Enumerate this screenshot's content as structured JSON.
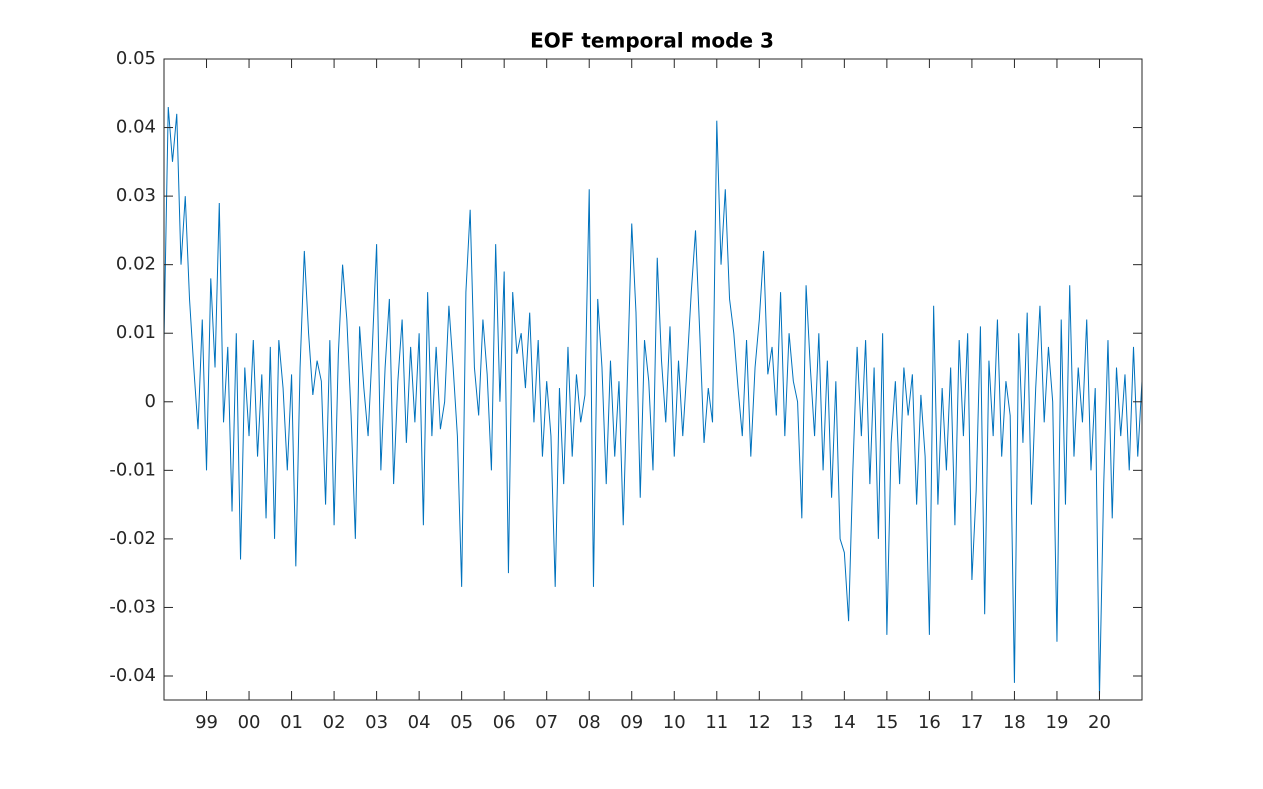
{
  "chart_data": {
    "type": "line",
    "title": "EOF temporal mode 3",
    "x": [
      1998,
      1998.1,
      1998.2,
      1998.3,
      1998.4,
      1998.5,
      1998.6,
      1998.7,
      1998.8,
      1998.9,
      1999,
      1999.1,
      1999.2,
      1999.3,
      1999.4,
      1999.5,
      1999.6,
      1999.7,
      1999.8,
      1999.9,
      2000,
      2000.1,
      2000.2,
      2000.3,
      2000.4,
      2000.5,
      2000.6,
      2000.7,
      2000.8,
      2000.9,
      2001,
      2001.1,
      2001.2,
      2001.3,
      2001.4,
      2001.5,
      2001.6,
      2001.7,
      2001.8,
      2001.9,
      2002,
      2002.1,
      2002.2,
      2002.3,
      2002.4,
      2002.5,
      2002.6,
      2002.7,
      2002.8,
      2002.9,
      2003,
      2003.1,
      2003.2,
      2003.3,
      2003.4,
      2003.5,
      2003.6,
      2003.7,
      2003.8,
      2003.9,
      2004,
      2004.1,
      2004.2,
      2004.3,
      2004.4,
      2004.5,
      2004.6,
      2004.7,
      2004.8,
      2004.9,
      2005,
      2005.1,
      2005.2,
      2005.3,
      2005.4,
      2005.5,
      2005.6,
      2005.7,
      2005.8,
      2005.9,
      2006,
      2006.1,
      2006.2,
      2006.3,
      2006.4,
      2006.5,
      2006.6,
      2006.7,
      2006.8,
      2006.9,
      2007,
      2007.1,
      2007.2,
      2007.3,
      2007.4,
      2007.5,
      2007.6,
      2007.7,
      2007.8,
      2007.9,
      2008,
      2008.1,
      2008.2,
      2008.3,
      2008.4,
      2008.5,
      2008.6,
      2008.7,
      2008.8,
      2008.9,
      2009,
      2009.1,
      2009.2,
      2009.3,
      2009.4,
      2009.5,
      2009.6,
      2009.7,
      2009.8,
      2009.9,
      2010,
      2010.1,
      2010.2,
      2010.3,
      2010.4,
      2010.5,
      2010.6,
      2010.7,
      2010.8,
      2010.9,
      2011,
      2011.1,
      2011.2,
      2011.3,
      2011.4,
      2011.5,
      2011.6,
      2011.7,
      2011.8,
      2011.9,
      2012,
      2012.1,
      2012.2,
      2012.3,
      2012.4,
      2012.5,
      2012.6,
      2012.7,
      2012.8,
      2012.9,
      2013,
      2013.1,
      2013.2,
      2013.3,
      2013.4,
      2013.5,
      2013.6,
      2013.7,
      2013.8,
      2013.9,
      2014,
      2014.1,
      2014.2,
      2014.3,
      2014.4,
      2014.5,
      2014.6,
      2014.7,
      2014.8,
      2014.9,
      2015,
      2015.1,
      2015.2,
      2015.3,
      2015.4,
      2015.5,
      2015.6,
      2015.7,
      2015.8,
      2015.9,
      2016,
      2016.1,
      2016.2,
      2016.3,
      2016.4,
      2016.5,
      2016.6,
      2016.7,
      2016.8,
      2016.9,
      2017,
      2017.1,
      2017.2,
      2017.3,
      2017.4,
      2017.5,
      2017.6,
      2017.7,
      2017.8,
      2017.9,
      2018,
      2018.1,
      2018.2,
      2018.3,
      2018.4,
      2018.5,
      2018.6,
      2018.7,
      2018.8,
      2018.9,
      2019,
      2019.1,
      2019.2,
      2019.3,
      2019.4,
      2019.5,
      2019.6,
      2019.7,
      2019.8,
      2019.9,
      2020,
      2020.1,
      2020.2,
      2020.3,
      2020.4,
      2020.5,
      2020.6,
      2020.7,
      2020.8,
      2020.9,
      2021
    ],
    "series": [
      {
        "color": "#0072bd",
        "values": [
          0.009,
          0.043,
          0.035,
          0.042,
          0.02,
          0.03,
          0.015,
          0.005,
          -0.004,
          0.012,
          -0.01,
          0.018,
          0.005,
          0.029,
          -0.003,
          0.008,
          -0.016,
          0.01,
          -0.023,
          0.005,
          -0.005,
          0.009,
          -0.008,
          0.004,
          -0.017,
          0.008,
          -0.02,
          0.009,
          0.002,
          -0.01,
          0.004,
          -0.024,
          0.005,
          0.022,
          0.01,
          0.001,
          0.006,
          0.003,
          -0.015,
          0.009,
          -0.018,
          0.007,
          0.02,
          0.012,
          -0.002,
          -0.02,
          0.011,
          0.002,
          -0.005,
          0.008,
          0.023,
          -0.01,
          0.005,
          0.015,
          -0.012,
          0.003,
          0.012,
          -0.006,
          0.008,
          -0.003,
          0.01,
          -0.018,
          0.016,
          -0.005,
          0.008,
          -0.004,
          0.0,
          0.014,
          0.005,
          -0.005,
          -0.027,
          0.016,
          0.028,
          0.005,
          -0.002,
          0.012,
          0.004,
          -0.01,
          0.023,
          0.0,
          0.019,
          -0.025,
          0.016,
          0.007,
          0.01,
          0.002,
          0.013,
          -0.003,
          0.009,
          -0.008,
          0.003,
          -0.005,
          -0.027,
          0.002,
          -0.012,
          0.008,
          -0.008,
          0.004,
          -0.003,
          0.001,
          0.031,
          -0.027,
          0.015,
          0.005,
          -0.012,
          0.006,
          -0.008,
          0.003,
          -0.018,
          0.004,
          0.026,
          0.013,
          -0.014,
          0.009,
          0.003,
          -0.01,
          0.021,
          0.006,
          -0.003,
          0.011,
          -0.008,
          0.006,
          -0.005,
          0.005,
          0.016,
          0.025,
          0.01,
          -0.006,
          0.002,
          -0.003,
          0.041,
          0.02,
          0.031,
          0.015,
          0.01,
          0.002,
          -0.005,
          0.009,
          -0.008,
          0.005,
          0.012,
          0.022,
          0.004,
          0.008,
          -0.002,
          0.016,
          -0.005,
          0.01,
          0.003,
          0.0,
          -0.017,
          0.017,
          0.005,
          -0.005,
          0.01,
          -0.01,
          0.006,
          -0.014,
          0.003,
          -0.02,
          -0.022,
          -0.032,
          -0.01,
          0.008,
          -0.005,
          0.009,
          -0.012,
          0.005,
          -0.02,
          0.01,
          -0.034,
          -0.006,
          0.003,
          -0.012,
          0.005,
          -0.002,
          0.004,
          -0.015,
          0.001,
          -0.008,
          -0.034,
          0.014,
          -0.015,
          0.002,
          -0.01,
          0.005,
          -0.018,
          0.009,
          -0.005,
          0.01,
          -0.026,
          -0.013,
          0.011,
          -0.031,
          0.006,
          -0.005,
          0.012,
          -0.008,
          0.003,
          -0.002,
          -0.041,
          0.01,
          -0.006,
          0.013,
          -0.015,
          0.002,
          0.014,
          -0.003,
          0.008,
          0.0,
          -0.035,
          0.012,
          -0.015,
          0.017,
          -0.008,
          0.005,
          -0.003,
          0.012,
          -0.01,
          0.002,
          -0.043,
          -0.012,
          0.009,
          -0.017,
          0.005,
          -0.005,
          0.004,
          -0.01,
          0.008,
          -0.008,
          0.003
        ]
      }
    ],
    "xlim": [
      1998,
      2021
    ],
    "xticks": [
      {
        "value": 1999,
        "label": "99"
      },
      {
        "value": 2000,
        "label": "00"
      },
      {
        "value": 2001,
        "label": "01"
      },
      {
        "value": 2002,
        "label": "02"
      },
      {
        "value": 2003,
        "label": "03"
      },
      {
        "value": 2004,
        "label": "04"
      },
      {
        "value": 2005,
        "label": "05"
      },
      {
        "value": 2006,
        "label": "06"
      },
      {
        "value": 2007,
        "label": "07"
      },
      {
        "value": 2008,
        "label": "08"
      },
      {
        "value": 2009,
        "label": "09"
      },
      {
        "value": 2010,
        "label": "10"
      },
      {
        "value": 2011,
        "label": "11"
      },
      {
        "value": 2012,
        "label": "12"
      },
      {
        "value": 2013,
        "label": "13"
      },
      {
        "value": 2014,
        "label": "14"
      },
      {
        "value": 2015,
        "label": "15"
      },
      {
        "value": 2016,
        "label": "16"
      },
      {
        "value": 2017,
        "label": "17"
      },
      {
        "value": 2018,
        "label": "18"
      },
      {
        "value": 2019,
        "label": "19"
      },
      {
        "value": 2020,
        "label": "20"
      }
    ],
    "ylim": [
      -0.0435,
      0.05
    ],
    "yticks": [
      -0.04,
      -0.03,
      -0.02,
      -0.01,
      0,
      0.01,
      0.02,
      0.03,
      0.04,
      0.05
    ],
    "grid": false
  }
}
